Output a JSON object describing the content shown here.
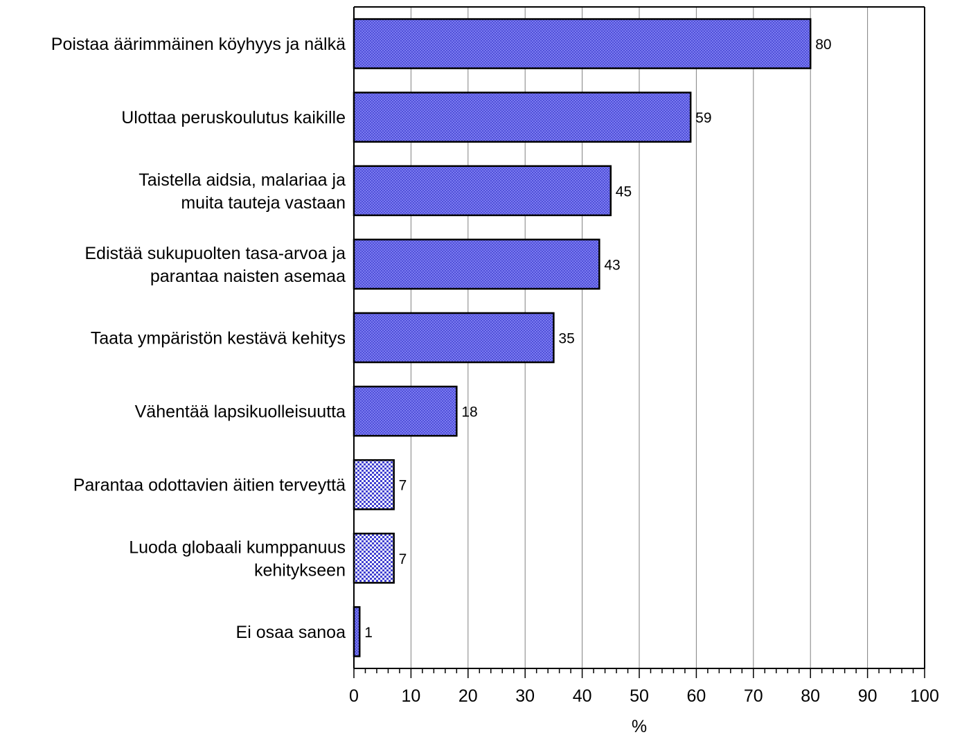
{
  "chart_data": {
    "type": "bar",
    "orientation": "horizontal",
    "categories": [
      [
        "Poistaa äärimmäinen köyhyys ja nälkä"
      ],
      [
        "Ulottaa peruskoulutus kaikille"
      ],
      [
        "Taistella aidsia, malariaa ja",
        "muita tauteja vastaan"
      ],
      [
        "Edistää sukupuolten tasa-arvoa ja",
        "parantaa naisten asemaa"
      ],
      [
        "Taata ympäristön kestävä kehitys"
      ],
      [
        "Vähentää lapsikuolleisuutta"
      ],
      [
        "Parantaa odottavien äitien terveyttä"
      ],
      [
        "Luoda globaali kumppanuus",
        "kehitykseen"
      ],
      [
        "Ei osaa sanoa"
      ]
    ],
    "values": [
      80,
      59,
      45,
      43,
      35,
      18,
      7,
      7,
      1
    ],
    "value_labels": [
      "80",
      "59",
      "45",
      "43",
      "35",
      "18",
      "7",
      "7",
      "1"
    ],
    "xlabel": "%",
    "xlim": [
      0,
      100
    ],
    "xticks": [
      "0",
      "10",
      "20",
      "30",
      "40",
      "50",
      "60",
      "70",
      "80",
      "90",
      "100"
    ],
    "grid": "vertical",
    "colors": {
      "bar": "#7b7bf0",
      "bar_dark": "#3c3cc4",
      "bar_small": "#a0a0ff",
      "edge": "#000000",
      "grid": "#808080"
    }
  }
}
